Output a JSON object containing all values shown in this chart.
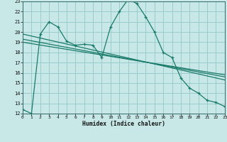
{
  "xlabel": "Humidex (Indice chaleur)",
  "bg_color": "#c8e8e8",
  "grid_color": "#99cccc",
  "line_color": "#1a7a6a",
  "xlim": [
    0,
    23
  ],
  "ylim": [
    12,
    23
  ],
  "yticks": [
    12,
    13,
    14,
    15,
    16,
    17,
    18,
    19,
    20,
    21,
    22,
    23
  ],
  "xticks": [
    0,
    1,
    2,
    3,
    4,
    5,
    6,
    7,
    8,
    9,
    10,
    11,
    12,
    13,
    14,
    15,
    16,
    17,
    18,
    19,
    20,
    21,
    22,
    23
  ],
  "curve_x": [
    0,
    1,
    2,
    3,
    4,
    5,
    6,
    7,
    8,
    9,
    10,
    11,
    12,
    13,
    14,
    15,
    16,
    17,
    18,
    19,
    20,
    21,
    22,
    23
  ],
  "curve_y": [
    12.4,
    12.0,
    19.8,
    21.0,
    20.5,
    19.1,
    18.7,
    18.8,
    18.7,
    17.5,
    20.5,
    22.0,
    23.2,
    22.8,
    21.5,
    20.0,
    18.0,
    17.5,
    15.5,
    14.5,
    14.0,
    13.3,
    13.1,
    12.7
  ],
  "line1_x": [
    0,
    23
  ],
  "line1_y": [
    19.8,
    15.3
  ],
  "line2_x": [
    0,
    23
  ],
  "line2_y": [
    19.3,
    15.6
  ],
  "line3_x": [
    0,
    23
  ],
  "line3_y": [
    19.0,
    15.8
  ]
}
